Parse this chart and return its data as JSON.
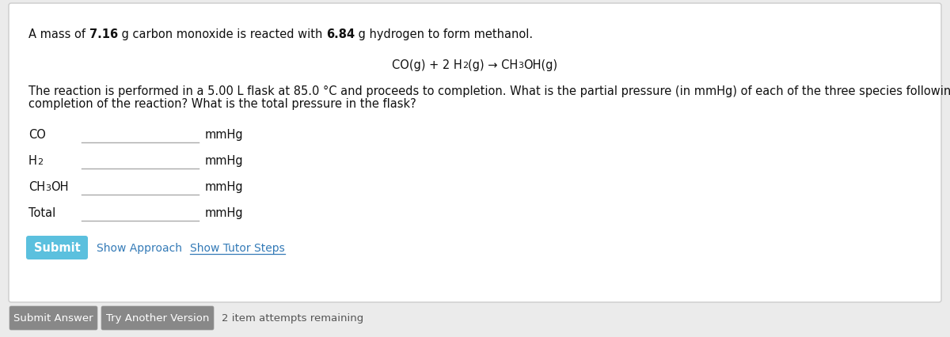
{
  "bg_color": "#ebebeb",
  "card_bg": "#ffffff",
  "card_border": "#cccccc",
  "bold1": "7.16",
  "bold2": "6.84",
  "body_text_line1": "The reaction is performed in a 5.00 L flask at 85.0 °C and proceeds to completion. What is the partial pressure (in mmHg) of each of the three species following",
  "body_text_line2": "completion of the reaction? What is the total pressure in the flask?",
  "submit_btn_color": "#5bc0de",
  "submit_btn_text_color": "#ffffff",
  "submit_btn_label": "Submit",
  "link_color": "#337ab7",
  "show_approach_text": "Show Approach",
  "show_tutor_text": "Show Tutor Steps",
  "bottom_btn_color": "#888888",
  "bottom_btn_text_color": "#ffffff",
  "submit_answer_label": "Submit Answer",
  "try_another_label": "Try Another Version",
  "attempts_text": "2 item attempts remaining",
  "input_border_color": "#aaaaaa",
  "text_color": "#111111",
  "figsize": [
    12.0,
    4.27
  ],
  "dpi": 100
}
